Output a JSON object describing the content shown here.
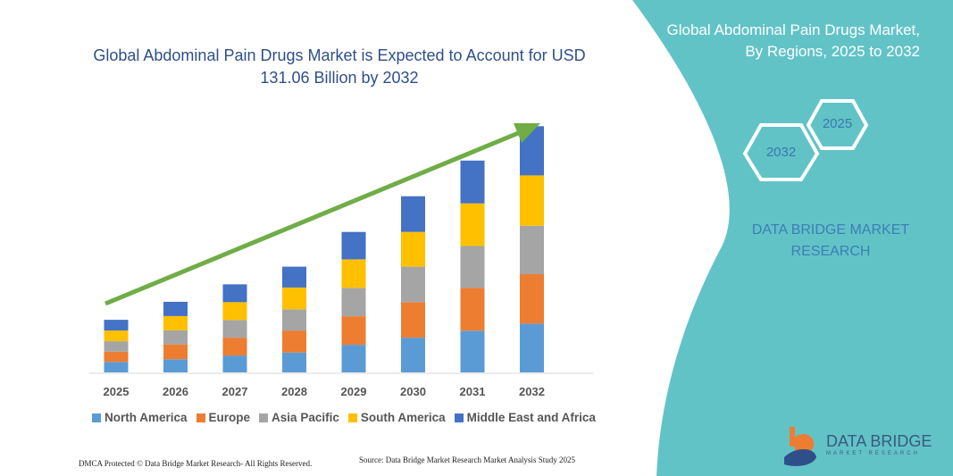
{
  "title": "Global Abdominal Pain Drugs Market is Expected to Account for USD 131.06 Billion by 2032",
  "side_panel": {
    "title": "Global Abdominal Pain Drugs Market, By Regions, 2025 to 2032",
    "hex_start": "2025",
    "hex_end": "2032",
    "brand": "DATA BRIDGE MARKET RESEARCH",
    "color": "#62c3c7"
  },
  "logo": {
    "name": "DATA BRIDGE",
    "tagline": "MARKET RESEARCH"
  },
  "footer": {
    "dmca": "DMCA Protected © Data Bridge Market Research- All Rights Reserved.",
    "source": "Source: Data Bridge Market Research Market Analysis Study 2025"
  },
  "chart_data": {
    "type": "bar",
    "stacked": true,
    "title": "Global Abdominal Pain Drugs Market is Expected to Account for USD 131.06 Billion by 2032",
    "categories": [
      "2025",
      "2026",
      "2027",
      "2028",
      "2029",
      "2030",
      "2031",
      "2032"
    ],
    "ylim": [
      0,
      135
    ],
    "grid": false,
    "legend_position": "bottom",
    "trend_arrow": true,
    "series": [
      {
        "name": "North America",
        "color": "#5b9bd5",
        "values": [
          5.6,
          7.0,
          9.0,
          10.6,
          14.7,
          18.5,
          22.2,
          26.0
        ]
      },
      {
        "name": "Europe",
        "color": "#ed7d31",
        "values": [
          5.4,
          7.9,
          9.5,
          11.7,
          15.2,
          18.9,
          22.8,
          26.3
        ]
      },
      {
        "name": "Asia Pacific",
        "color": "#a5a5a5",
        "values": [
          5.6,
          7.5,
          9.4,
          11.3,
          15.1,
          18.9,
          22.3,
          25.8
        ]
      },
      {
        "name": "South America",
        "color": "#ffc000",
        "values": [
          5.7,
          7.6,
          9.5,
          11.6,
          15.2,
          18.5,
          22.7,
          26.8
        ]
      },
      {
        "name": "Middle East and Africa",
        "color": "#4472c4",
        "values": [
          5.7,
          7.6,
          9.5,
          11.1,
          14.6,
          19.0,
          22.8,
          26.2
        ]
      }
    ]
  }
}
